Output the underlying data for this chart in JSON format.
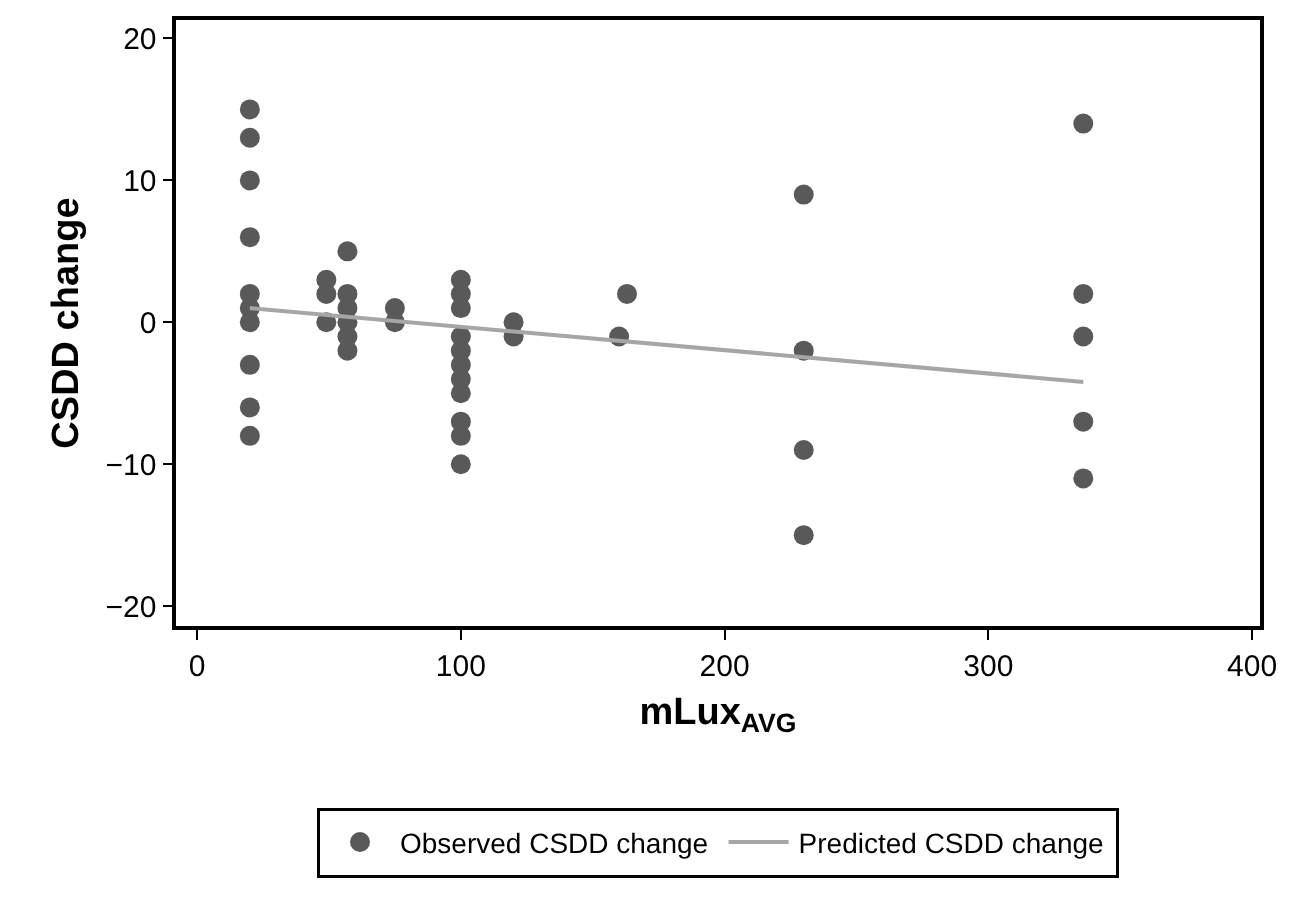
{
  "chart_data": {
    "type": "scatter",
    "xlabel": "mLux$_{AVG}$",
    "ylabel": "CSDD change",
    "xlim": [
      -8,
      403
    ],
    "xticks": [
      0,
      100,
      200,
      300,
      400
    ],
    "ylim": [
      -21.4,
      21.3
    ],
    "yticks": [
      -20,
      -10,
      0,
      10,
      20
    ],
    "grid": false,
    "legend": "bottom",
    "marker": "circle",
    "series": [
      {
        "name": "Observed CSDD change",
        "type": "scatter",
        "color": "#595959",
        "x": [
          20,
          20,
          20,
          20,
          20,
          20,
          20,
          20,
          20,
          20,
          49,
          49,
          49,
          57,
          57,
          57,
          57,
          57,
          57,
          75,
          75,
          100,
          100,
          100,
          100,
          100,
          100,
          100,
          100,
          100,
          100,
          100,
          120,
          120,
          160,
          163,
          230,
          230,
          230,
          230,
          336,
          336,
          336,
          336,
          336
        ],
        "values": [
          15,
          13,
          10,
          6,
          2,
          1,
          0,
          -3,
          -6,
          -8,
          3,
          2,
          0,
          5,
          2,
          1,
          0,
          -1,
          -2,
          1,
          0,
          3,
          2,
          1,
          -1,
          -2,
          -3,
          -4,
          -5,
          -7,
          -8,
          -10,
          0,
          -1,
          -1,
          2,
          9,
          -2,
          -9,
          -15,
          14,
          2,
          -1,
          -7,
          -11
        ]
      },
      {
        "name": "Predicted CSDD change",
        "type": "line",
        "color": "#a6a6a6",
        "line_style": "solid",
        "marker": "none",
        "x": [
          20,
          336
        ],
        "values": [
          1,
          -4.2
        ]
      }
    ]
  }
}
